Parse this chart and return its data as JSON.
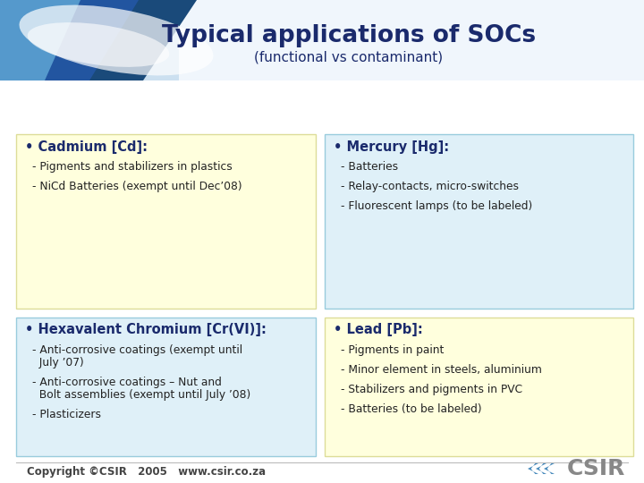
{
  "title": "Typical applications of SOCs",
  "subtitle": "(functional vs contaminant)",
  "bg_color": "#ffffff",
  "title_color": "#1a2a6c",
  "subtitle_color": "#1a2a6c",
  "box_yellow": "#ffffdd",
  "box_blue": "#dff0f8",
  "box_border_yellow": "#dddd99",
  "box_border_blue": "#99ccdd",
  "text_color": "#222222",
  "footer_color": "#444444",
  "panels": [
    {
      "header": "• Cadmium [Cd]:",
      "items": [
        "- Pigments and stabilizers in plastics",
        "- NiCd Batteries (exempt until Dec’08)"
      ],
      "color": "yellow",
      "row": 0,
      "col": 0
    },
    {
      "header": "• Mercury [Hg]:",
      "items": [
        "- Batteries",
        "- Relay-contacts, micro-switches",
        "- Fluorescent lamps (to be labeled)"
      ],
      "color": "blue",
      "row": 0,
      "col": 1
    },
    {
      "header": "• Hexavalent Chromium [Cr(VI)]:",
      "items": [
        "- Anti-corrosive coatings (exempt until\n  July ’07)",
        "- Anti-corrosive coatings – Nut and\n  Bolt assemblies (exempt until July ’08)",
        "- Plasticizers"
      ],
      "color": "blue",
      "row": 1,
      "col": 0
    },
    {
      "header": "• Lead [Pb]:",
      "items": [
        "- Pigments in paint",
        "- Minor element in steels, aluminium",
        "- Stabilizers and pigments in PVC",
        "- Batteries (to be labeled)"
      ],
      "color": "yellow",
      "row": 1,
      "col": 1
    }
  ],
  "footer_text": "Copyright ©CSIR   2005   www.csir.co.za",
  "top_bg_color": "#cce0f0",
  "top_stripe_dark": "#1a4a7a",
  "top_stripe_mid": "#2255a0",
  "top_stripe_light": "#5599cc",
  "csir_blue": "#4488bb"
}
